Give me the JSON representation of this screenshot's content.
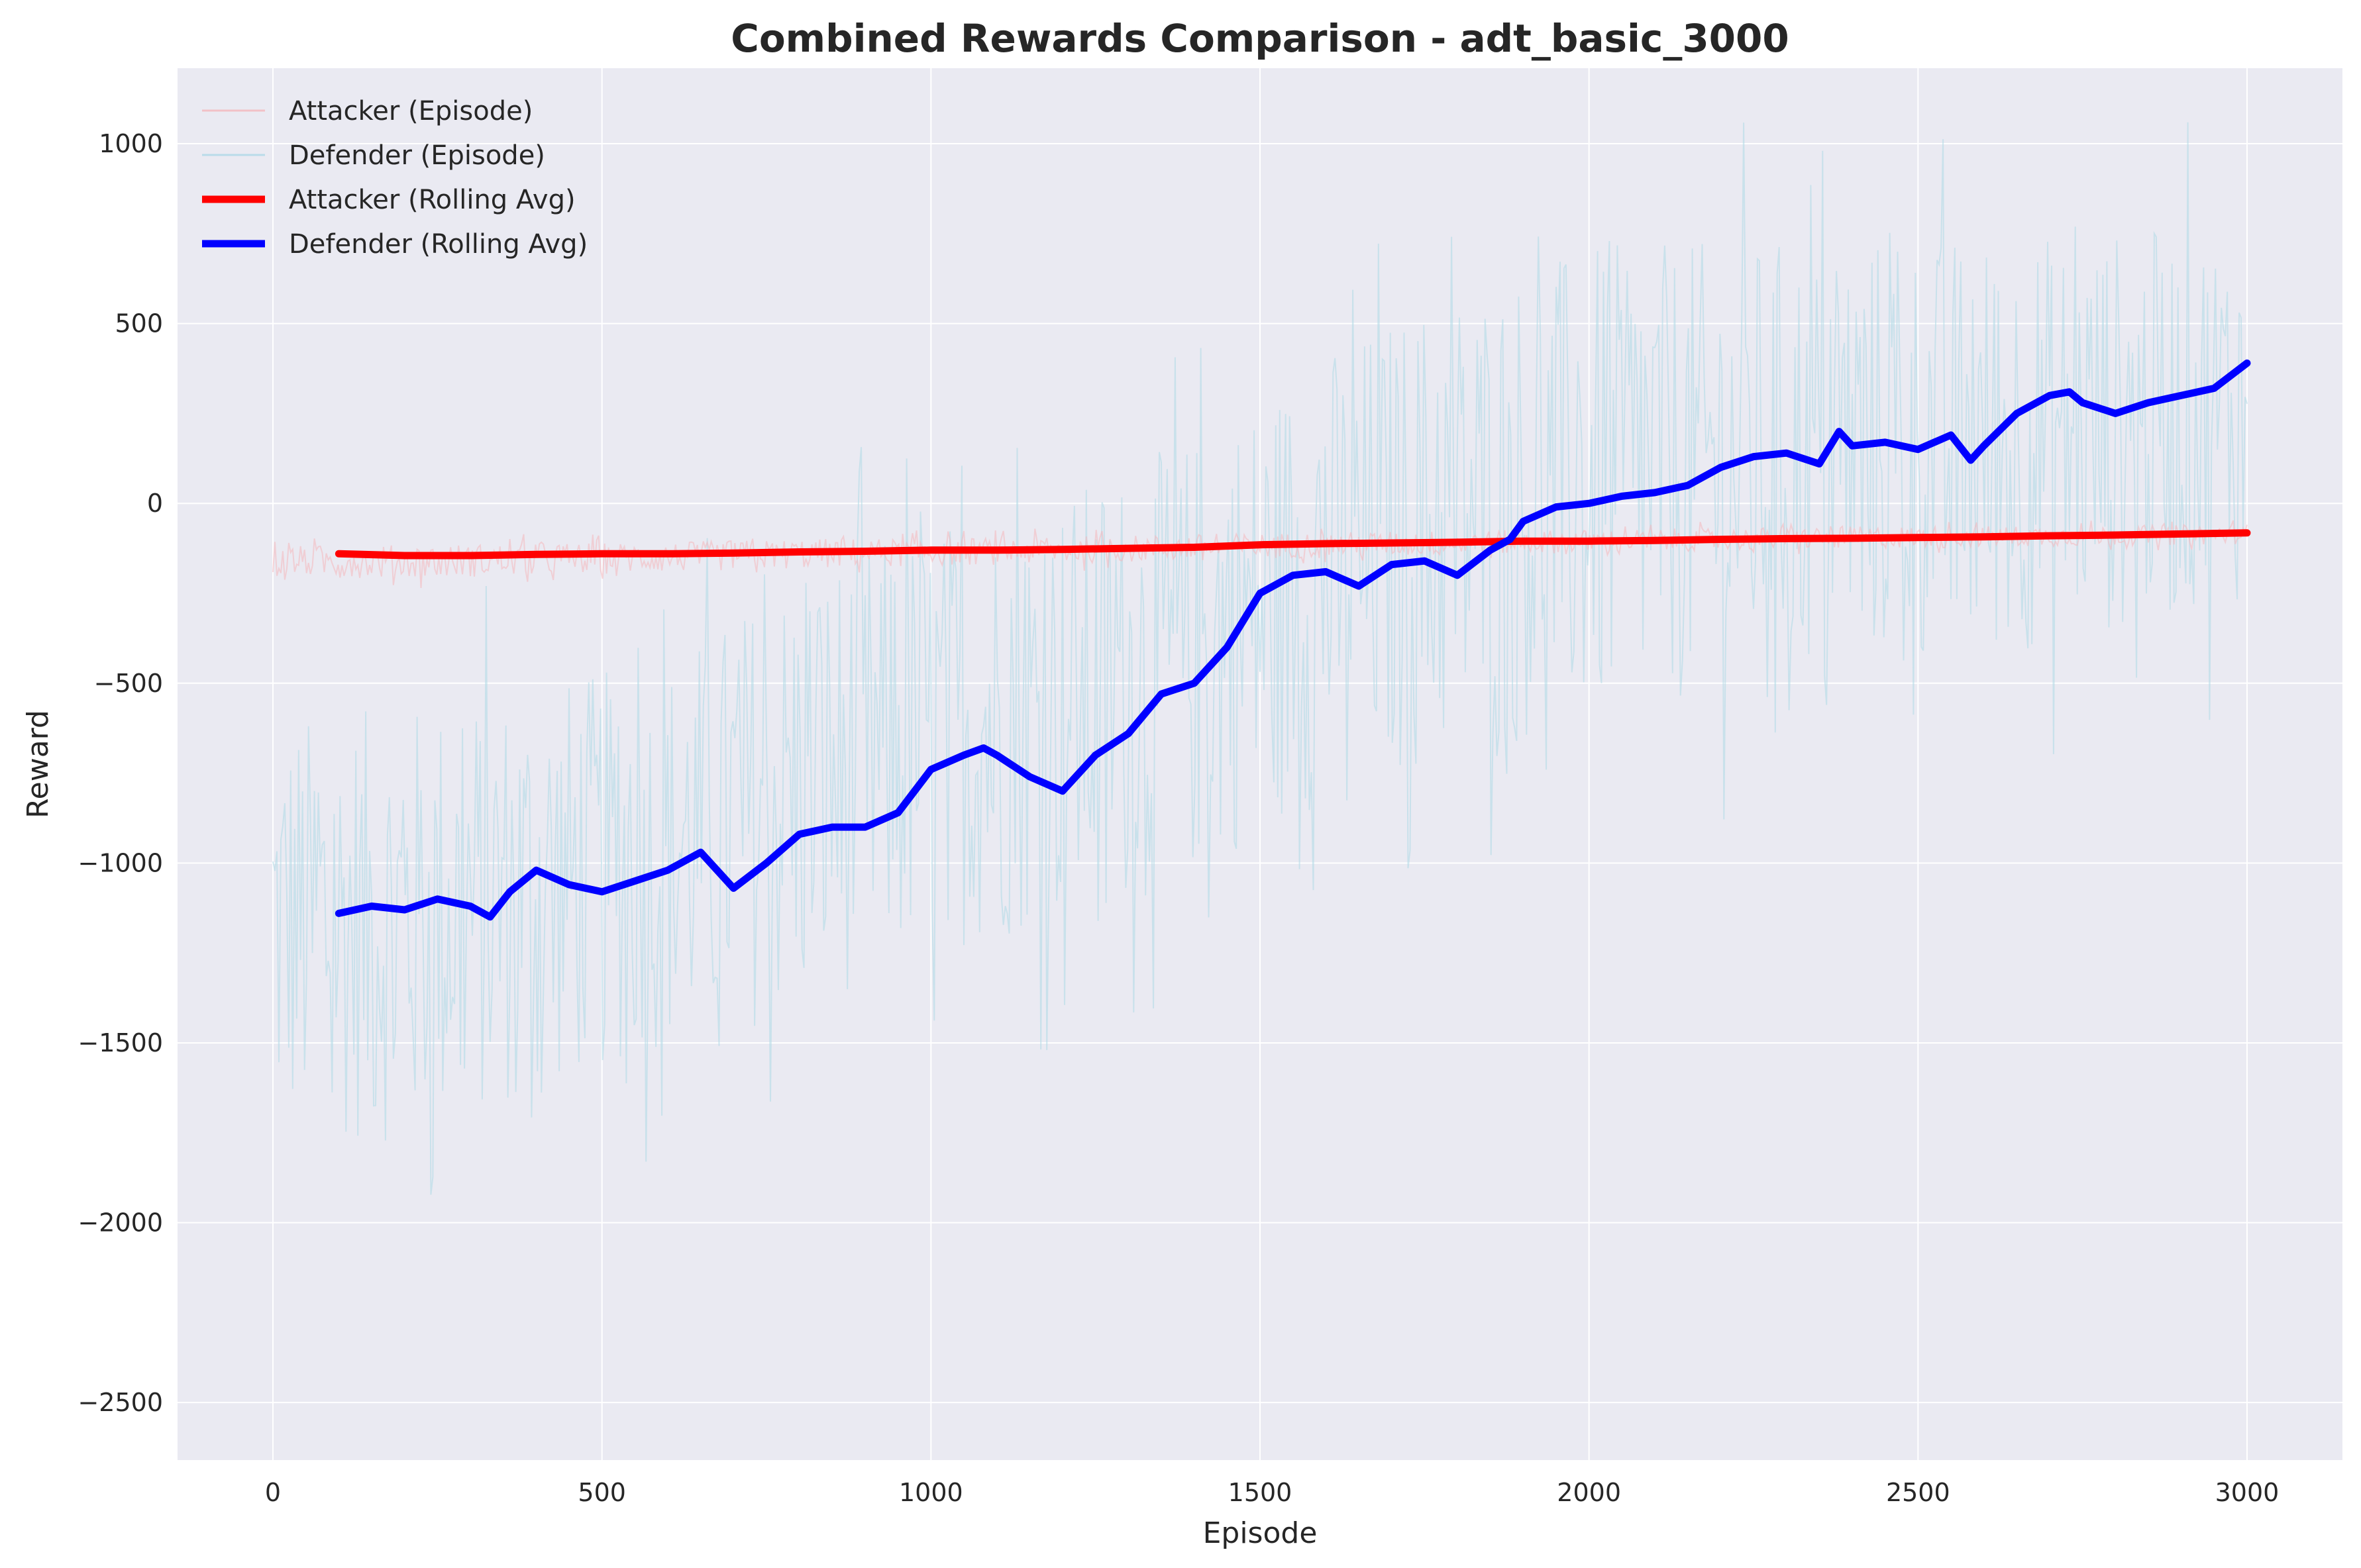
{
  "chart_data": {
    "type": "line",
    "title": "Combined Rewards Comparison - adt_basic_3000",
    "xlabel": "Episode",
    "ylabel": "Reward",
    "xlim": [
      -145,
      3145
    ],
    "ylim": [
      -2660,
      1210
    ],
    "xticks": [
      0,
      500,
      1000,
      1500,
      2000,
      2500,
      3000
    ],
    "yticks": [
      -2500,
      -2000,
      -1500,
      -1000,
      -500,
      0,
      500,
      1000
    ],
    "grid": true,
    "legend_position": "top-left",
    "colors": {
      "plot_background": "#eaeaf2",
      "grid": "#ffffff",
      "attacker_episode": "#f4b6bb",
      "defender_episode": "#add8e6",
      "attacker_avg": "#ff0000",
      "defender_avg": "#0000ff"
    },
    "series": [
      {
        "name": "Attacker (Episode)",
        "kind": "episode",
        "color": "#f4b6bb",
        "band_x": [
          0,
          200,
          400,
          600,
          800,
          1000,
          1200,
          1400,
          1600,
          1800,
          2000,
          2200,
          2400,
          2600,
          2800,
          3000
        ],
        "band_low": [
          -220,
          -230,
          -220,
          -210,
          -200,
          -190,
          -185,
          -175,
          -165,
          -160,
          -150,
          -145,
          -140,
          -135,
          -130,
          -125
        ],
        "band_high": [
          -100,
          -95,
          -90,
          -90,
          -80,
          -80,
          -75,
          -70,
          -65,
          -60,
          -60,
          -55,
          -50,
          -50,
          -50,
          -45
        ]
      },
      {
        "name": "Defender (Episode)",
        "kind": "episode",
        "color": "#add8e6",
        "band_x": [
          0,
          200,
          400,
          600,
          800,
          1000,
          1200,
          1400,
          1600,
          1800,
          2000,
          2200,
          2400,
          2600,
          2800,
          3000
        ],
        "band_low": [
          -2000,
          -2050,
          -1900,
          -1750,
          -1700,
          -1500,
          -1450,
          -1300,
          -1100,
          -1000,
          -900,
          -800,
          -700,
          -700,
          -600,
          -500
        ],
        "band_high": [
          -350,
          -300,
          -250,
          -200,
          100,
          200,
          300,
          450,
          700,
          900,
          1000,
          1000,
          1000,
          1000,
          1000,
          1000
        ]
      },
      {
        "name": "Attacker (Rolling Avg)",
        "kind": "rolling",
        "color": "#ff0000",
        "x": [
          100,
          200,
          300,
          400,
          500,
          600,
          700,
          800,
          900,
          1000,
          1100,
          1200,
          1300,
          1400,
          1500,
          1600,
          1700,
          1800,
          1900,
          2000,
          2100,
          2200,
          2300,
          2400,
          2500,
          2600,
          2700,
          2800,
          2900,
          3000
        ],
        "values": [
          -140,
          -145,
          -145,
          -142,
          -140,
          -140,
          -138,
          -135,
          -133,
          -130,
          -130,
          -128,
          -125,
          -122,
          -115,
          -112,
          -110,
          -108,
          -105,
          -105,
          -103,
          -100,
          -98,
          -97,
          -95,
          -93,
          -90,
          -88,
          -85,
          -82
        ]
      },
      {
        "name": "Defender (Rolling Avg)",
        "kind": "rolling",
        "color": "#0000ff",
        "x": [
          100,
          150,
          200,
          250,
          300,
          330,
          360,
          400,
          450,
          500,
          550,
          600,
          650,
          700,
          750,
          800,
          850,
          900,
          950,
          1000,
          1050,
          1080,
          1100,
          1150,
          1200,
          1250,
          1300,
          1350,
          1400,
          1450,
          1500,
          1550,
          1600,
          1650,
          1700,
          1750,
          1800,
          1850,
          1880,
          1900,
          1950,
          2000,
          2050,
          2100,
          2150,
          2200,
          2250,
          2300,
          2350,
          2380,
          2400,
          2450,
          2500,
          2550,
          2580,
          2600,
          2650,
          2700,
          2730,
          2750,
          2800,
          2850,
          2900,
          2950,
          3000
        ],
        "values": [
          -1140,
          -1120,
          -1130,
          -1100,
          -1120,
          -1150,
          -1080,
          -1020,
          -1060,
          -1080,
          -1050,
          -1020,
          -970,
          -1070,
          -1000,
          -920,
          -900,
          -900,
          -860,
          -740,
          -700,
          -680,
          -700,
          -760,
          -800,
          -700,
          -640,
          -530,
          -500,
          -400,
          -250,
          -200,
          -190,
          -230,
          -170,
          -160,
          -200,
          -130,
          -100,
          -50,
          -10,
          0,
          20,
          30,
          50,
          100,
          130,
          140,
          110,
          200,
          160,
          170,
          150,
          190,
          120,
          160,
          250,
          300,
          310,
          280,
          250,
          280,
          300,
          320,
          390
        ]
      }
    ]
  }
}
